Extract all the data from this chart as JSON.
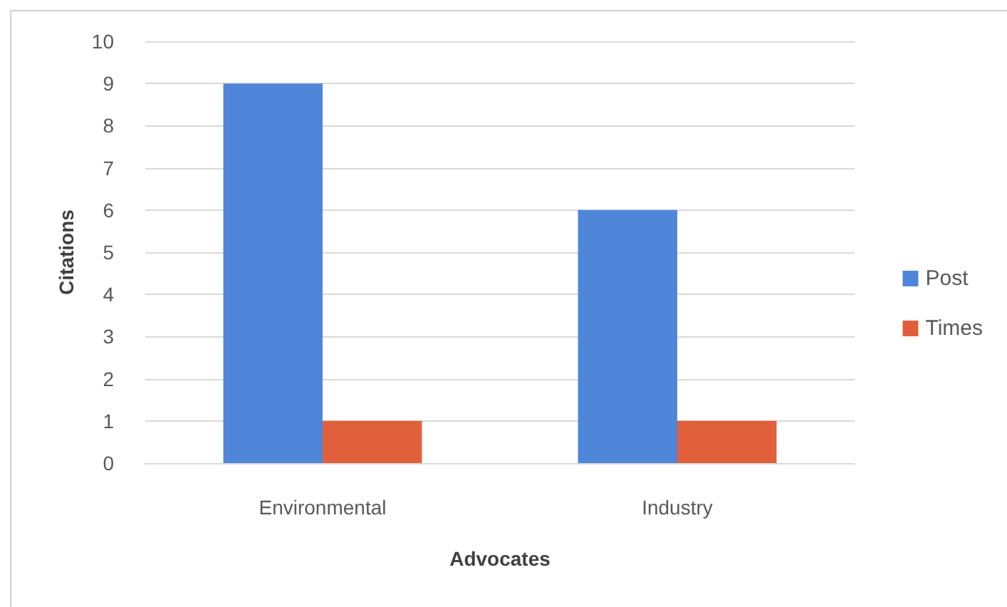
{
  "chart_data": {
    "type": "bar",
    "xlabel": "Advocates",
    "ylabel": "Citations",
    "categories": [
      "Environmental",
      "Industry"
    ],
    "series": [
      {
        "name": "Post",
        "color": "#4f86d9",
        "values": [
          9,
          6
        ]
      },
      {
        "name": "Times",
        "color": "#e0603c",
        "values": [
          1,
          1
        ]
      }
    ],
    "ylim": [
      0,
      10
    ],
    "yticks": [
      0,
      1,
      2,
      3,
      4,
      5,
      6,
      7,
      8,
      9,
      10
    ],
    "grid": "y",
    "legend": "right"
  }
}
